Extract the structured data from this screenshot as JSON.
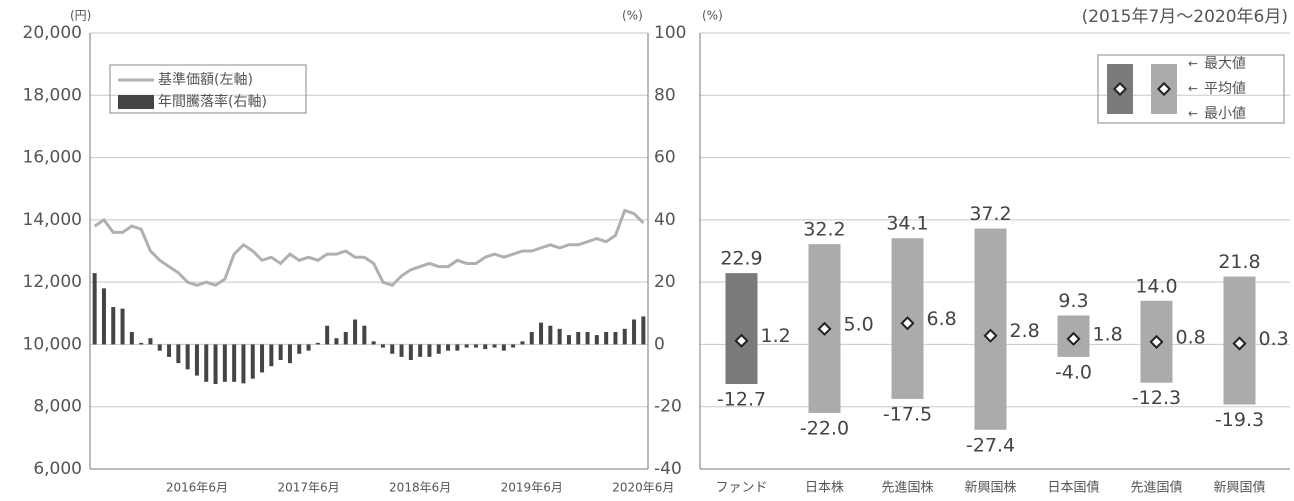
{
  "chart_data": [
    {
      "type": "combo",
      "y_unit": "(円)",
      "y2_unit": "(%)",
      "categories": [
        null,
        null,
        null,
        null,
        null,
        null,
        null,
        null,
        null,
        null,
        null,
        "2016年6月",
        null,
        null,
        null,
        null,
        null,
        null,
        null,
        null,
        null,
        null,
        null,
        "2017年6月",
        null,
        null,
        null,
        null,
        null,
        null,
        null,
        null,
        null,
        null,
        null,
        "2018年6月",
        null,
        null,
        null,
        null,
        null,
        null,
        null,
        null,
        null,
        null,
        null,
        "2019年6月",
        null,
        null,
        null,
        null,
        null,
        null,
        null,
        null,
        null,
        null,
        null,
        "2020年6月"
      ],
      "series": [
        {
          "name": "基準価額(左軸)",
          "type": "line",
          "color": "#b0b0b0",
          "values": [
            13800,
            14000,
            13600,
            13600,
            13800,
            13700,
            13000,
            12700,
            12500,
            12300,
            12000,
            11900,
            12000,
            11900,
            12100,
            12900,
            13200,
            13000,
            12700,
            12800,
            12600,
            12900,
            12700,
            12800,
            12700,
            12900,
            12900,
            13000,
            12800,
            12800,
            12600,
            12000,
            11900,
            12200,
            12400,
            12500,
            12600,
            12500,
            12500,
            12700,
            12600,
            12600,
            12800,
            12900,
            12800,
            12900,
            13000,
            13000,
            13100,
            13200,
            13100,
            13200,
            13200,
            13300,
            13400,
            13300,
            13500,
            14300,
            14200,
            13900
          ]
        },
        {
          "name": "年間騰落率(右軸)",
          "type": "bar",
          "axis": "y2",
          "color": "#444444",
          "values": [
            22.9,
            18,
            12,
            11.5,
            4,
            0.5,
            2,
            -2,
            -4,
            -6,
            -8,
            -10,
            -12,
            -12.7,
            -12,
            -12,
            -12.5,
            -11,
            -9,
            -7,
            -5,
            -6,
            -3,
            -2,
            0.5,
            6,
            2,
            4,
            8,
            6,
            1,
            -1,
            -3,
            -4,
            -5,
            -4,
            -4,
            -3,
            -2,
            -2,
            -1,
            -1,
            -1.5,
            -1,
            -2,
            -1,
            1,
            4,
            7,
            6,
            5,
            3,
            4,
            4,
            3,
            4,
            4,
            5,
            8,
            9
          ]
        }
      ],
      "ylim": [
        6000,
        20000
      ],
      "yticks": [
        {
          "value": 6000,
          "label": "6,000"
        },
        {
          "value": 8000,
          "label": "8,000"
        },
        {
          "value": 10000,
          "label": "10,000"
        },
        {
          "value": 12000,
          "label": "12,000"
        },
        {
          "value": 14000,
          "label": "14,000"
        },
        {
          "value": 16000,
          "label": "16,000"
        },
        {
          "value": 18000,
          "label": "18,000"
        },
        {
          "value": 20000,
          "label": "20,000"
        }
      ],
      "y2lim": [
        -40,
        100
      ],
      "y2ticks": [
        -40,
        -20,
        0,
        20,
        40,
        60,
        80,
        100
      ],
      "grid": true,
      "legend": "top-left"
    },
    {
      "type": "range",
      "subtitle": "(2015年7月～2020年6月)",
      "y_unit": "(%)",
      "categories": [
        "ファンド",
        "日本株",
        "先進国株",
        "新興国株",
        "日本国債",
        "先進国債",
        "新興国債"
      ],
      "colors": [
        "#7a7a7a",
        "#ababab",
        "#ababab",
        "#ababab",
        "#ababab",
        "#ababab",
        "#ababab"
      ],
      "series": [
        {
          "name": "最大値",
          "values": [
            22.9,
            32.2,
            34.1,
            37.2,
            9.3,
            14.0,
            21.8
          ],
          "value_labels": [
            "22.9",
            "32.2",
            "34.1",
            "37.2",
            "9.3",
            "14.0",
            "21.8"
          ]
        },
        {
          "name": "平均値",
          "values": [
            1.2,
            5.0,
            6.8,
            2.8,
            1.8,
            0.8,
            0.3
          ],
          "value_labels": [
            "1.2",
            "5.0",
            "6.8",
            "2.8",
            "1.8",
            "0.8",
            "0.3"
          ]
        },
        {
          "name": "最小値",
          "values": [
            -12.7,
            -22.0,
            -17.5,
            -27.4,
            -4.0,
            -12.3,
            -19.3
          ],
          "value_labels": [
            "-12.7",
            "-22.0",
            "-17.5",
            "-27.4",
            "-4.0",
            "-12.3",
            "-19.3"
          ]
        }
      ],
      "ylim": [
        -40,
        100
      ],
      "yticks": [
        -40,
        -20,
        0,
        20,
        40,
        60,
        80,
        100
      ],
      "grid": true,
      "legend": "top-right"
    }
  ]
}
